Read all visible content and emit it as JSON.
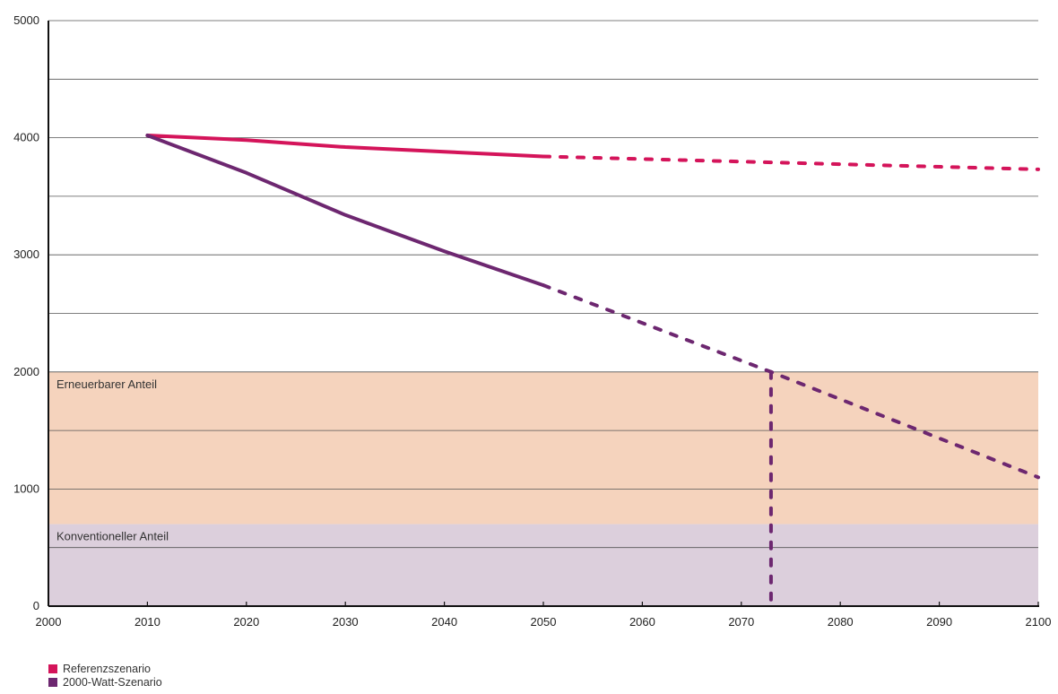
{
  "chart_data": {
    "type": "line",
    "title": "",
    "xlabel": "",
    "ylabel": "",
    "xlim": [
      2000,
      2100
    ],
    "ylim": [
      0,
      5000
    ],
    "x_ticks": [
      2000,
      2010,
      2020,
      2030,
      2040,
      2050,
      2060,
      2070,
      2080,
      2090,
      2100
    ],
    "y_ticks": [
      0,
      1000,
      2000,
      3000,
      4000,
      5000
    ],
    "grid_y": [
      500,
      1000,
      1500,
      2000,
      2500,
      3000,
      3500,
      4000,
      4500,
      5000
    ],
    "grid": true,
    "legend_position": "bottom-left",
    "bands": [
      {
        "name": "Erneuerbarer Anteil",
        "from": 700,
        "to": 2000,
        "color": "#f5d3bd"
      },
      {
        "name": "Konventioneller Anteil",
        "from": 0,
        "to": 700,
        "color": "#dccfdc"
      }
    ],
    "series": [
      {
        "name": "Referenzszenario",
        "color": "#d4145a",
        "solid": {
          "x": [
            2010,
            2020,
            2030,
            2040,
            2050
          ],
          "y": [
            4020,
            3980,
            3920,
            3880,
            3840
          ]
        },
        "dashed": {
          "x": [
            2050,
            2100
          ],
          "y": [
            3840,
            3730
          ]
        }
      },
      {
        "name": "2000-Watt-Szenario",
        "color": "#6d2770",
        "solid": {
          "x": [
            2010,
            2020,
            2030,
            2040,
            2050
          ],
          "y": [
            4020,
            3700,
            3340,
            3030,
            2740
          ]
        },
        "dashed": {
          "x": [
            2050,
            2073,
            2100
          ],
          "y": [
            2740,
            2000,
            1100
          ]
        }
      }
    ],
    "marker_line": {
      "x": 2073,
      "from": 0,
      "to": 2000,
      "color": "#6d2770"
    }
  }
}
